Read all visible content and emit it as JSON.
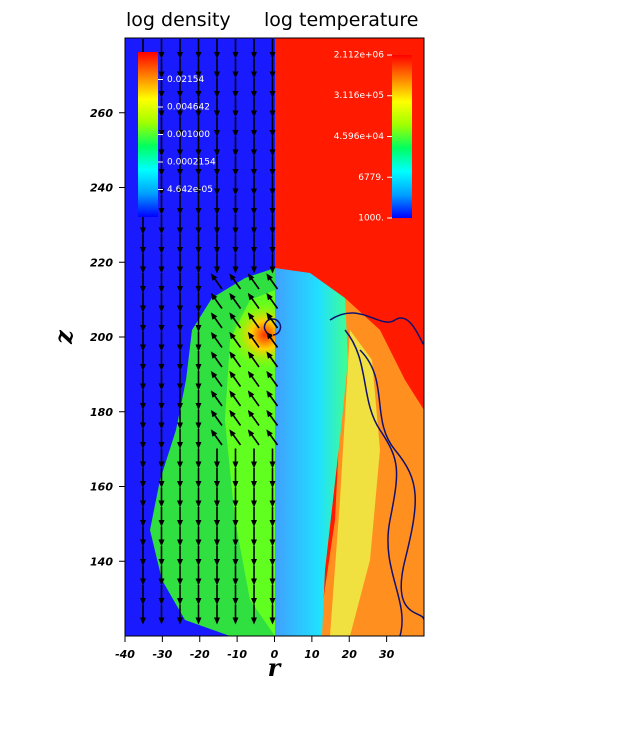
{
  "chart_data": {
    "type": "field",
    "titles": [
      "log density",
      "log temperature"
    ],
    "x_label": "r",
    "y_label": "z",
    "xlim": [
      -40,
      40
    ],
    "xticks": [
      -40,
      -30,
      -20,
      -10,
      0,
      10,
      20,
      30
    ],
    "ylim": [
      120,
      280
    ],
    "yticks": [
      140,
      160,
      180,
      200,
      220,
      240,
      260
    ],
    "colormap": [
      "#0000ff",
      "#00a0ff",
      "#00ffff",
      "#00ff60",
      "#a0ff00",
      "#ffff00",
      "#ff8000",
      "#ff0000"
    ],
    "colorbars": [
      {
        "scale": "log",
        "lim": [
          1e-05,
          0.1
        ],
        "ticks": [
          0.02154,
          0.004642,
          {
            "value": 0.001,
            "label": "0.001000"
          },
          0.0002154,
          {
            "value": 4.642e-05,
            "label": "4.642e-05"
          }
        ]
      },
      {
        "scale": "log",
        "lim": [
          1000,
          2112000
        ],
        "ticks": [
          {
            "value": 2112000,
            "label": "2.112e+06"
          },
          {
            "value": 311600,
            "label": "3.116e+05"
          },
          {
            "value": 45960,
            "label": "4.596e+04"
          },
          {
            "value": 6779,
            "label": "6779."
          },
          {
            "value": 1000,
            "label": "1000."
          }
        ]
      }
    ]
  }
}
